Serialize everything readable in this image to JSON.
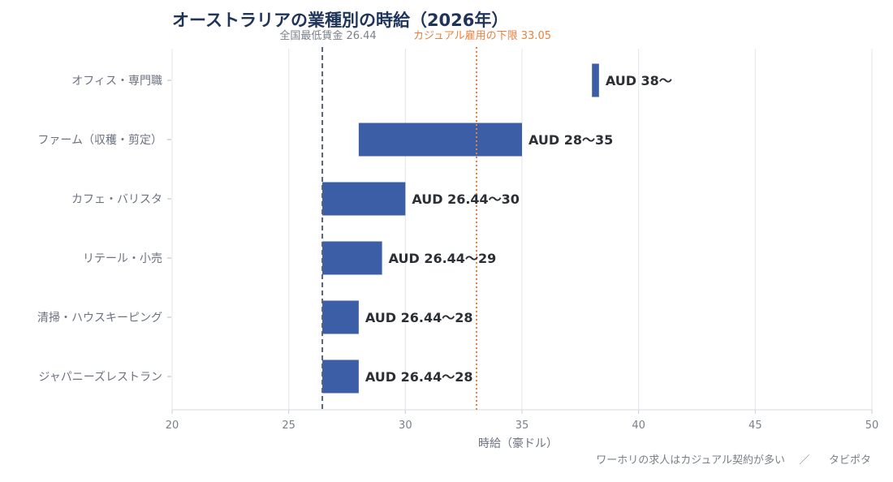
{
  "chart_data": {
    "type": "bar",
    "orientation": "horizontal",
    "title": "オーストラリアの業種別の時給（2026年）",
    "xlabel": "時給（豪ドル）",
    "ylabel": "",
    "xlim": [
      20,
      50
    ],
    "xticks": [
      20,
      25,
      30,
      35,
      40,
      45,
      50
    ],
    "grid": true,
    "bar_color": "#3b5ea6",
    "categories": [
      "オフィス・専門職",
      "ファーム（収穫・剪定）",
      "カフェ・バリスタ",
      "リテール・小売",
      "清掃・ハウスキーピング",
      "ジャパニーズレストラン"
    ],
    "ranges": [
      {
        "start": 38,
        "end": 38.3,
        "label": "AUD 38〜"
      },
      {
        "start": 28,
        "end": 35,
        "label": "AUD 28〜35"
      },
      {
        "start": 26.44,
        "end": 30,
        "label": "AUD 26.44〜30"
      },
      {
        "start": 26.44,
        "end": 29,
        "label": "AUD 26.44〜29"
      },
      {
        "start": 26.44,
        "end": 28,
        "label": "AUD 26.44〜28"
      },
      {
        "start": 26.44,
        "end": 28,
        "label": "AUD 26.44〜28"
      }
    ],
    "reference_lines": [
      {
        "value": 26.44,
        "label": "全国最低賃金 26.44",
        "style": "dashed",
        "color": "#5a6475"
      },
      {
        "value": 33.05,
        "label": "カジュアル雇用の下限 33.05",
        "style": "dotted",
        "color": "#e8813f"
      }
    ]
  },
  "footer": {
    "note": "ワーホリの求人はカジュアル契約が多い",
    "separator": "／",
    "brand": "タビポタ"
  }
}
